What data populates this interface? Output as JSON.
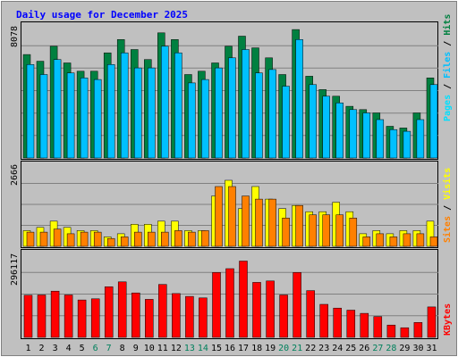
{
  "chart_data": [
    {
      "type": "bar",
      "title": "Daily usage for December 2025",
      "categories": [
        "1",
        "2",
        "3",
        "4",
        "5",
        "6",
        "7",
        "8",
        "9",
        "10",
        "11",
        "12",
        "13",
        "14",
        "15",
        "16",
        "17",
        "18",
        "19",
        "20",
        "21",
        "22",
        "23",
        "24",
        "25",
        "26",
        "27",
        "28",
        "29",
        "30",
        "31"
      ],
      "weekend_days": [
        "6",
        "7",
        "13",
        "14",
        "20",
        "21",
        "27",
        "28"
      ],
      "ymax_label": "8078",
      "ymax": 8078,
      "legend": [
        "Pages",
        "Files",
        "Hits"
      ],
      "series": [
        {
          "name": "Hits",
          "color": "#008040",
          "values": [
            6200,
            5800,
            6700,
            5700,
            5200,
            5200,
            6300,
            7100,
            6500,
            5900,
            7500,
            7100,
            5000,
            5200,
            5700,
            6700,
            7300,
            6600,
            6000,
            5000,
            7700,
            4900,
            4100,
            3700,
            3100,
            2900,
            2700,
            1900,
            1800,
            2700,
            4800
          ]
        },
        {
          "name": "Files",
          "color": "#00c0ff",
          "values": [
            5600,
            5000,
            5900,
            5100,
            4800,
            4700,
            5600,
            6300,
            5400,
            5400,
            6700,
            6300,
            4500,
            4700,
            5400,
            6000,
            6500,
            5100,
            5300,
            4300,
            7100,
            4400,
            3700,
            3300,
            2900,
            2700,
            2300,
            1700,
            1600,
            2300,
            4400
          ]
        },
        {
          "name": "Pages",
          "color": "#00e0ff",
          "values": [
            5600,
            5000,
            5900,
            5100,
            4800,
            4700,
            5600,
            6300,
            5400,
            5400,
            6700,
            6300,
            4500,
            4700,
            5400,
            6000,
            6500,
            5100,
            5300,
            4300,
            7100,
            4400,
            3700,
            3300,
            2900,
            2700,
            2300,
            1700,
            1600,
            2300,
            4400
          ]
        }
      ]
    },
    {
      "type": "bar",
      "ymax_label": "2666",
      "ymax": 2666,
      "legend": [
        "Sites",
        "Visits"
      ],
      "series": [
        {
          "name": "Visits",
          "color": "#ffff00",
          "values": [
            500,
            600,
            800,
            600,
            500,
            500,
            300,
            400,
            700,
            700,
            800,
            800,
            500,
            500,
            1600,
            2100,
            1200,
            1900,
            1500,
            1200,
            1300,
            1100,
            1100,
            1400,
            1100,
            400,
            500,
            400,
            500,
            500,
            800
          ]
        },
        {
          "name": "Sites",
          "color": "#ff8000",
          "values": [
            450,
            450,
            550,
            400,
            450,
            450,
            250,
            300,
            450,
            450,
            450,
            500,
            450,
            500,
            1900,
            1900,
            1600,
            1500,
            1500,
            900,
            1300,
            1000,
            1000,
            1000,
            900,
            300,
            400,
            300,
            400,
            400,
            300
          ]
        }
      ]
    },
    {
      "type": "bar",
      "ymax_label": "296117",
      "ymax": 296117,
      "legend": [
        "KBytes"
      ],
      "series": [
        {
          "name": "KBytes",
          "color": "#ff0000",
          "values": [
            144000,
            145000,
            158000,
            145000,
            128000,
            132000,
            173000,
            190000,
            152000,
            130000,
            181000,
            150000,
            140000,
            135000,
            222000,
            235000,
            261000,
            188000,
            193000,
            145000,
            222000,
            160000,
            113000,
            100000,
            93000,
            82000,
            71000,
            42000,
            33000,
            51000,
            104000
          ]
        }
      ]
    }
  ],
  "colors": {
    "background": "#c0c0c0",
    "plot_bg": "#c0c0c0",
    "title": "#0000ff",
    "axis_text": "#000000",
    "weekend_text": "#00805c",
    "grid": "#808080",
    "hits_label": "#008040",
    "files_label": "#00c0ff",
    "pages_label": "#00e0ff",
    "sites_label": "#ff8000",
    "visits_label": "#ffff00",
    "kbytes_label": "#ff0000"
  }
}
